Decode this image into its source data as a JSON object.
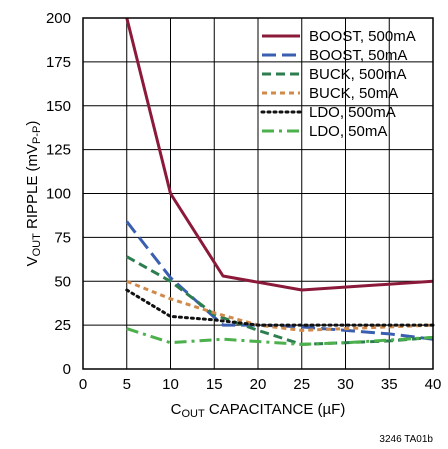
{
  "chart_data": {
    "type": "line",
    "xlabel": {
      "main": "C",
      "sub": "OUT",
      "rest": " CAPACITANCE (µF)"
    },
    "ylabel": {
      "main": "V",
      "sub": "OUT",
      "rest": " RIPPLE (mV",
      "sub2": "P-P",
      "end": ")"
    },
    "xlim": [
      0,
      40
    ],
    "ylim": [
      0,
      200
    ],
    "x_ticks": [
      0,
      5,
      10,
      15,
      20,
      25,
      30,
      35,
      40
    ],
    "y_ticks": [
      0,
      25,
      50,
      75,
      100,
      125,
      150,
      175,
      200
    ],
    "grid": true,
    "legend_position": "top-right",
    "series": [
      {
        "name": "BOOST, 500mA",
        "color": "#8b1a3a",
        "dash": "solid",
        "x": [
          5,
          10,
          16,
          25,
          40
        ],
        "y": [
          200,
          100,
          53,
          45,
          50
        ]
      },
      {
        "name": "BOOST, 50mA",
        "color": "#3a5fb0",
        "dash": "longdash",
        "x": [
          5,
          10,
          16,
          20,
          25,
          30,
          35,
          40
        ],
        "y": [
          84,
          52,
          25,
          25,
          24,
          22,
          20,
          17
        ]
      },
      {
        "name": "BUCK, 500mA",
        "color": "#2e7d4f",
        "dash": "dash",
        "x": [
          5,
          10,
          15,
          20,
          25,
          30,
          35,
          40
        ],
        "y": [
          64,
          50,
          31,
          22,
          14,
          15,
          16,
          18
        ]
      },
      {
        "name": "BUCK, 50mA",
        "color": "#d08a4a",
        "dash": "shortdash",
        "x": [
          5,
          10,
          15,
          20,
          25,
          30,
          35,
          40
        ],
        "y": [
          50,
          40,
          32,
          25,
          22,
          23,
          24,
          25
        ]
      },
      {
        "name": "LDO, 500mA",
        "color": "#111111",
        "dash": "dot",
        "x": [
          5,
          10,
          15,
          20,
          25,
          30,
          35,
          40
        ],
        "y": [
          45,
          30,
          28,
          25,
          25,
          25,
          25,
          25
        ]
      },
      {
        "name": "LDO, 50mA",
        "color": "#4cb04c",
        "dash": "dashdot",
        "x": [
          5,
          10,
          16,
          25,
          30,
          40
        ],
        "y": [
          23,
          15,
          17,
          14,
          15,
          18
        ]
      }
    ],
    "annotation": "3246 TA01b"
  }
}
